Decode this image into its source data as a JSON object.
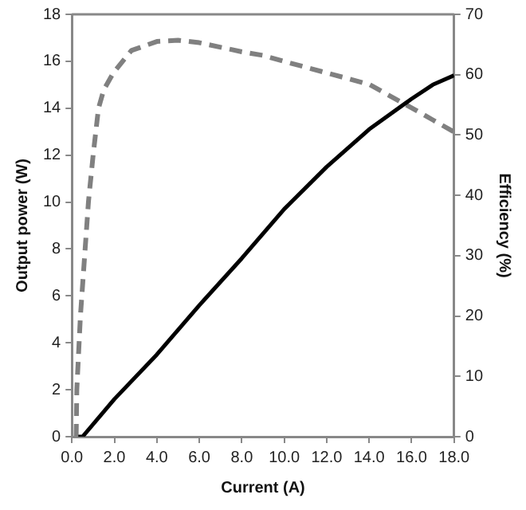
{
  "chart_data": {
    "type": "line",
    "xlabel": "Current (A)",
    "ylabel": "Output power (W)",
    "y2label": "Efficiency (%)",
    "xlim": [
      0,
      18
    ],
    "xticks": [
      {
        "value": 0,
        "label": "0.0"
      },
      {
        "value": 2,
        "label": "2.0"
      },
      {
        "value": 4,
        "label": "4.0"
      },
      {
        "value": 6,
        "label": "6.0"
      },
      {
        "value": 8,
        "label": "8.0"
      },
      {
        "value": 10,
        "label": "10.0"
      },
      {
        "value": 12,
        "label": "12.0"
      },
      {
        "value": 14,
        "label": "14.0"
      },
      {
        "value": 16,
        "label": "16.0"
      },
      {
        "value": 18,
        "label": "18.0"
      }
    ],
    "ylim": [
      0,
      18
    ],
    "yticks": [
      0,
      2,
      4,
      6,
      8,
      10,
      12,
      14,
      16,
      18
    ],
    "y2lim": [
      0,
      70
    ],
    "y2ticks": [
      0,
      10,
      20,
      30,
      40,
      50,
      60,
      70
    ],
    "grid": false,
    "legend": false,
    "marker": "none",
    "series": [
      {
        "color": "#000000",
        "line_style": "solid",
        "x": [
          0.3,
          0.5,
          2,
          4,
          6,
          8,
          10,
          12,
          14,
          16,
          17,
          18
        ],
        "values": [
          0,
          0,
          1.6,
          3.5,
          5.6,
          7.6,
          9.7,
          11.5,
          13.1,
          14.4,
          15,
          15.4
        ]
      },
      {
        "color": "#808080",
        "line_style": "dashed",
        "axis": "y2",
        "x": [
          0.2,
          0.23,
          0.4,
          0.62,
          0.78,
          1.0,
          1.25,
          1.5,
          1.95,
          2.8,
          4,
          5,
          6,
          8,
          9,
          10,
          12,
          14,
          16,
          17,
          18
        ],
        "values": [
          0,
          7.8,
          20,
          31,
          39,
          46.7,
          54.4,
          57.5,
          60.3,
          64,
          65.5,
          65.7,
          65.3,
          63.8,
          63.2,
          62.2,
          60.3,
          58.4,
          54.5,
          52.5,
          50.5
        ]
      }
    ]
  }
}
